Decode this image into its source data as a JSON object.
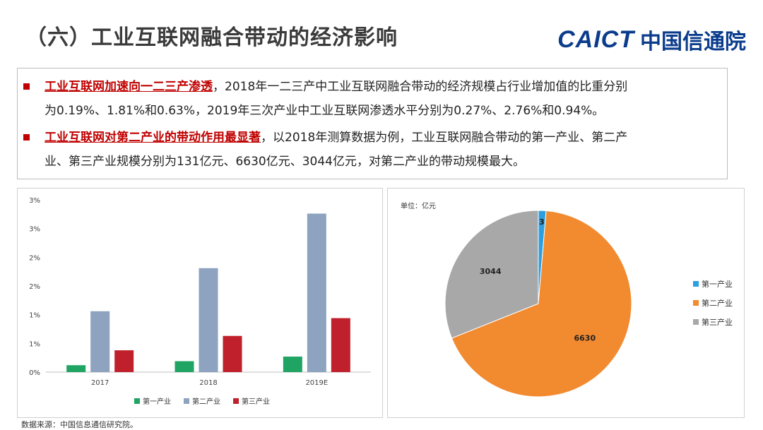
{
  "header": {
    "title": "（六）工业互联网融合带动的经济影响",
    "logo_latin": "CAICT",
    "logo_cn": "中国信通院"
  },
  "summary": {
    "p1_highlight": "工业互联网加速向一二三产渗透",
    "p1_rest": "，2018年一二三产中工业互联网融合带动的经济规模占行业增加值的比重分别",
    "p1_line2": "为0.19%、1.81%和0.63%，2019年三次产业中工业互联网渗透水平分别为0.27%、2.76%和0.94%。",
    "p2_highlight": "工业互联网对第二产业的带动作用最显著",
    "p2_rest": "，以2018年测算数据为例，工业互联网融合带动的第一产业、第二产",
    "p2_line2": "业、第三产业规模分别为131亿元、6630亿元、3044亿元，对第二产业的带动规模最大。"
  },
  "footer": {
    "source": "数据来源：中国信息通信研究院。"
  },
  "colors": {
    "brand": "#0b3c8c",
    "highlight": "#c00000",
    "primary": "#1fa463",
    "secondary": "#8da3bf",
    "tertiary": "#c0202b",
    "pie_primary": "#2b9fe0",
    "pie_secondary": "#f28a30",
    "pie_tertiary": "#a8a8a8"
  },
  "chart_data": [
    {
      "type": "bar",
      "categories": [
        "2017",
        "2018",
        "2019E"
      ],
      "series": [
        {
          "name": "第一产业",
          "values": [
            0.12,
            0.19,
            0.27
          ]
        },
        {
          "name": "第二产业",
          "values": [
            1.06,
            1.81,
            2.76
          ]
        },
        {
          "name": "第三产业",
          "values": [
            0.38,
            0.63,
            0.94
          ]
        }
      ],
      "y_ticks": [
        "0%",
        "1%",
        "1%",
        "2%",
        "2%",
        "3%",
        "3%"
      ],
      "ylim": [
        0,
        3
      ],
      "legend_position": "bottom"
    },
    {
      "type": "pie",
      "unit_label": "单位：亿元",
      "labels": [
        "第一产业",
        "第二产业",
        "第三产业"
      ],
      "values": [
        131,
        6630,
        3044
      ],
      "legend_position": "right"
    }
  ]
}
